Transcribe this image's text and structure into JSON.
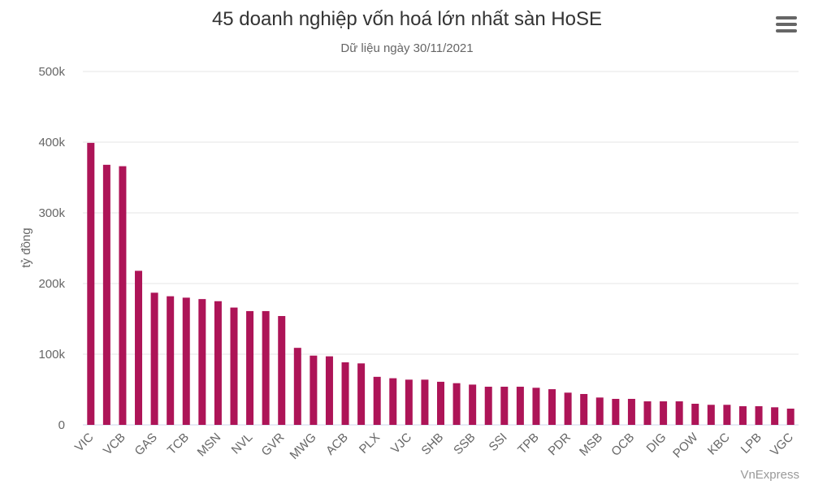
{
  "chart_data": {
    "type": "bar",
    "title": "45 doanh nghiệp vốn hoá lớn nhất sàn HoSE",
    "subtitle": "Dữ liệu ngày 30/11/2021",
    "ylabel": "tỷ đồng",
    "xlabel": "",
    "ylim": [
      0,
      500000
    ],
    "yticks": [
      "0",
      "100k",
      "200k",
      "300k",
      "400k",
      "500k"
    ],
    "grid": true,
    "color": "#ad1457",
    "categories": [
      "VIC",
      "",
      "VCB",
      "",
      "GAS",
      "",
      "TCB",
      "",
      "MSN",
      "",
      "NVL",
      "",
      "GVR",
      "",
      "MWG",
      "",
      "ACB",
      "",
      "PLX",
      "",
      "VJC",
      "",
      "SHB",
      "",
      "SSB",
      "",
      "SSI",
      "",
      "TPB",
      "",
      "PDR",
      "",
      "MSB",
      "",
      "OCB",
      "",
      "DIG",
      "",
      "POW",
      "",
      "KBC",
      "",
      "LPB",
      "",
      "VGC"
    ],
    "values": [
      399000,
      368000,
      366000,
      218000,
      187000,
      182000,
      180000,
      178000,
      175000,
      166000,
      161000,
      161000,
      154000,
      109000,
      98000,
      97000,
      88500,
      87000,
      68000,
      66000,
      64000,
      64000,
      61000,
      59000,
      57000,
      54000,
      54000,
      54000,
      52500,
      50500,
      45600,
      43700,
      38700,
      36800,
      36800,
      33300,
      33300,
      33300,
      29900,
      28400,
      28400,
      26400,
      26400,
      24900,
      23000
    ]
  },
  "credit": "VnExpress",
  "menu_icon": "hamburger-menu-icon"
}
